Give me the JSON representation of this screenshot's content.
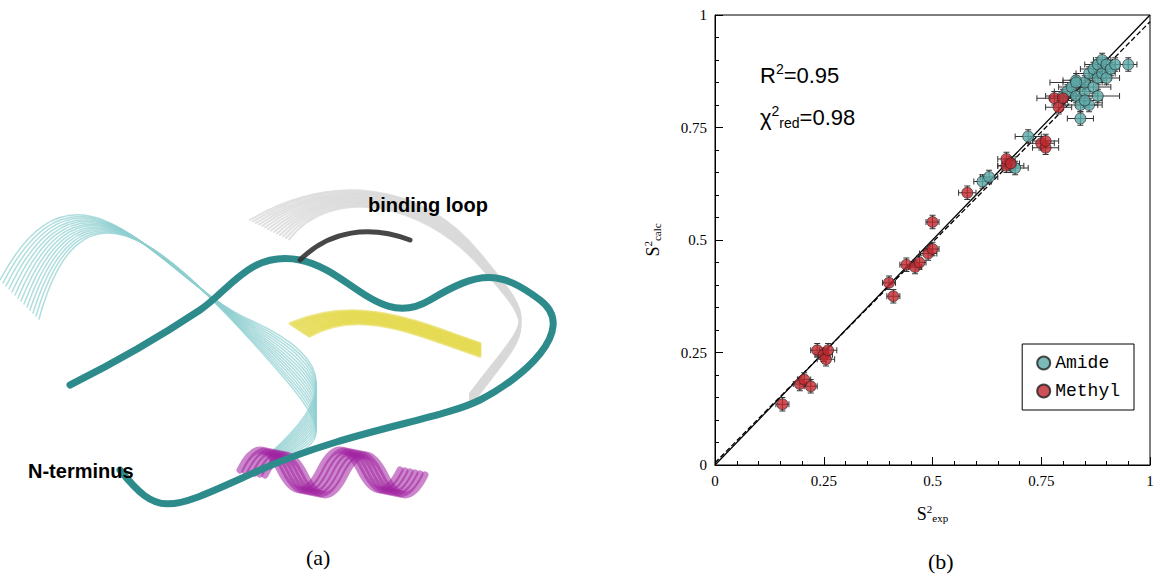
{
  "panel_a": {
    "label": "(a)",
    "annotations": [
      "binding loop",
      "N-terminus"
    ]
  },
  "chart_data": {
    "type": "scatter",
    "panel_label": "(b)",
    "x_label": {
      "base": "S",
      "sup": "2",
      "sub": "exp"
    },
    "y_label": {
      "base": "S",
      "sup": "2",
      "sub": "calc"
    },
    "annotations": [
      {
        "base": "R",
        "sup": "2",
        "rest": "=0.95"
      },
      {
        "base": "χ",
        "sup": "2",
        "sub": "red",
        "rest": "=0.98"
      }
    ],
    "xlim": [
      0,
      1
    ],
    "ylim": [
      0,
      1
    ],
    "xticks": [
      0,
      0.25,
      0.5,
      0.75,
      1
    ],
    "yticks": [
      0,
      0.25,
      0.5,
      0.75,
      1
    ],
    "grid": false,
    "legend": "lower right",
    "series": [
      {
        "name": "Amide",
        "color": "#5ba8a8",
        "marker": "circle",
        "x": [
          0.615,
          0.63,
          0.68,
          0.69,
          0.72,
          0.8,
          0.81,
          0.82,
          0.83,
          0.83,
          0.84,
          0.84,
          0.85,
          0.85,
          0.86,
          0.86,
          0.87,
          0.87,
          0.88,
          0.88,
          0.88,
          0.89,
          0.89,
          0.9,
          0.9,
          0.91,
          0.92,
          0.95,
          0.85,
          0.83
        ],
        "y": [
          0.63,
          0.64,
          0.665,
          0.66,
          0.73,
          0.82,
          0.83,
          0.84,
          0.82,
          0.855,
          0.77,
          0.8,
          0.83,
          0.85,
          0.87,
          0.8,
          0.88,
          0.84,
          0.89,
          0.86,
          0.82,
          0.9,
          0.87,
          0.89,
          0.86,
          0.88,
          0.89,
          0.89,
          0.81,
          0.85
        ],
        "x_error": [
          0.02,
          0.02,
          0.03,
          0.03,
          0.03,
          0.04,
          0.03,
          0.03,
          0.05,
          0.03,
          0.03,
          0.04,
          0.03,
          0.05,
          0.03,
          0.03,
          0.03,
          0.04,
          0.03,
          0.03,
          0.05,
          0.02,
          0.03,
          0.02,
          0.03,
          0.02,
          0.03,
          0.02,
          0.04,
          0.06
        ],
        "y_error": [
          0.015,
          0.015,
          0.015,
          0.015,
          0.015,
          0.015,
          0.015,
          0.015,
          0.015,
          0.015,
          0.015,
          0.015,
          0.015,
          0.015,
          0.015,
          0.015,
          0.015,
          0.015,
          0.015,
          0.015,
          0.015,
          0.015,
          0.015,
          0.015,
          0.015,
          0.015,
          0.015,
          0.015,
          0.015,
          0.015
        ]
      },
      {
        "name": "Methyl",
        "color": "#c1272d",
        "marker": "circle",
        "x": [
          0.155,
          0.195,
          0.205,
          0.22,
          0.235,
          0.25,
          0.255,
          0.26,
          0.4,
          0.41,
          0.44,
          0.46,
          0.47,
          0.49,
          0.5,
          0.5,
          0.58,
          0.67,
          0.67,
          0.68,
          0.75,
          0.76,
          0.76,
          0.78,
          0.79,
          0.8
        ],
        "y": [
          0.135,
          0.18,
          0.19,
          0.175,
          0.255,
          0.245,
          0.235,
          0.255,
          0.405,
          0.375,
          0.445,
          0.44,
          0.45,
          0.47,
          0.54,
          0.48,
          0.605,
          0.665,
          0.68,
          0.67,
          0.715,
          0.705,
          0.72,
          0.815,
          0.795,
          0.815
        ],
        "x_error": [
          0.015,
          0.015,
          0.015,
          0.015,
          0.015,
          0.02,
          0.02,
          0.02,
          0.015,
          0.015,
          0.015,
          0.015,
          0.015,
          0.02,
          0.015,
          0.015,
          0.02,
          0.02,
          0.02,
          0.02,
          0.03,
          0.03,
          0.03,
          0.04,
          0.03,
          0.03
        ],
        "y_error": [
          0.015,
          0.015,
          0.015,
          0.015,
          0.015,
          0.015,
          0.015,
          0.015,
          0.015,
          0.015,
          0.015,
          0.015,
          0.015,
          0.015,
          0.015,
          0.015,
          0.015,
          0.015,
          0.015,
          0.015,
          0.015,
          0.015,
          0.015,
          0.015,
          0.015,
          0.015
        ]
      }
    ],
    "reference_lines": [
      {
        "x": [
          0,
          1
        ],
        "y": [
          0,
          1
        ],
        "color": "#000000",
        "line_style": "solid"
      },
      {
        "x": [
          0,
          1
        ],
        "y": [
          0.005,
          0.985
        ],
        "color": "#000000",
        "line_style": "dashed"
      }
    ]
  }
}
